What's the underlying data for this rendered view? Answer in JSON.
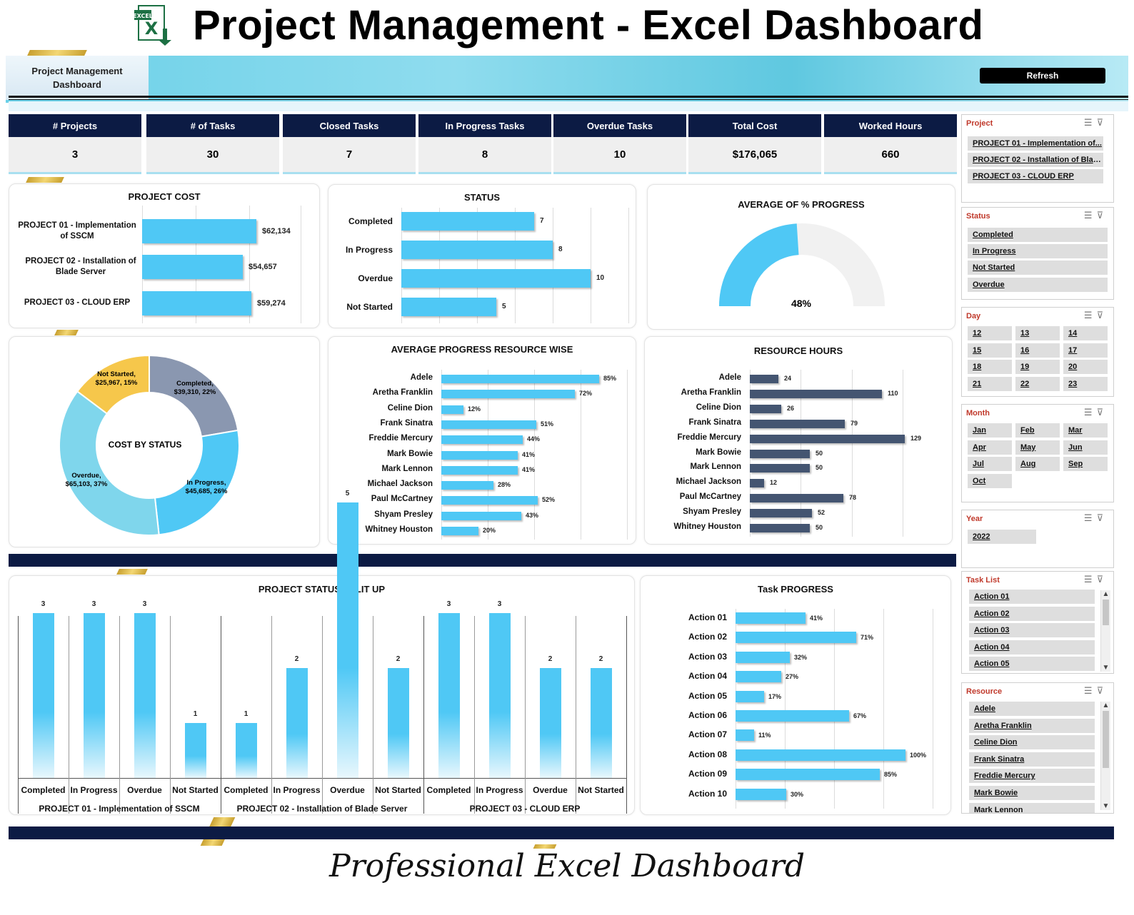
{
  "header": {
    "title": "Project Management - Excel Dashboard",
    "logo_text": "EXCEL"
  },
  "banner": {
    "label": "Project Management Dashboard",
    "refresh_label": "Refresh"
  },
  "kpis": [
    {
      "label": "# Projects",
      "value": "3"
    },
    {
      "label": "# of Tasks",
      "value": "30"
    },
    {
      "label": "Closed Tasks",
      "value": "7"
    },
    {
      "label": "In Progress Tasks",
      "value": "8"
    },
    {
      "label": "Overdue Tasks",
      "value": "10"
    },
    {
      "label": "Total Cost",
      "value": "$176,065"
    },
    {
      "label": "Worked Hours",
      "value": "660"
    }
  ],
  "project_cost": {
    "title": "PROJECT COST",
    "items": [
      {
        "label": "PROJECT 01 - Implementation of SSCM",
        "value_label": "$62,134",
        "value": 62134
      },
      {
        "label": "PROJECT 02 - Installation of Blade Server",
        "value_label": "$54,657",
        "value": 54657
      },
      {
        "label": "PROJECT 03 - CLOUD ERP",
        "value_label": "$59,274",
        "value": 59274
      }
    ]
  },
  "status": {
    "title": "STATUS",
    "items": [
      {
        "label": "Completed",
        "value": 7
      },
      {
        "label": "In Progress",
        "value": 8
      },
      {
        "label": "Overdue",
        "value": 10
      },
      {
        "label": "Not Started",
        "value": 5
      }
    ]
  },
  "avg_progress": {
    "title": "AVERAGE OF % PROGRESS",
    "value": 0.48,
    "value_label": "48%"
  },
  "cost_by_status": {
    "title": "COST BY STATUS",
    "slices": [
      {
        "name": "Completed",
        "amount": "$39,310",
        "pct": "22%",
        "value": 39310,
        "color": "#8a97b0"
      },
      {
        "name": "In Progress",
        "amount": "$45,685",
        "pct": "26%",
        "value": 45685,
        "color": "#4fc8f5"
      },
      {
        "name": "Overdue",
        "amount": "$65,103",
        "pct": "37%",
        "value": 65103,
        "color": "#7fd6ec"
      },
      {
        "name": "Not Started",
        "amount": "$25,967",
        "pct": "15%",
        "value": 25967,
        "color": "#f6c74b"
      }
    ]
  },
  "avg_progress_resource": {
    "title": "AVERAGE PROGRESS RESOURCE WISE",
    "items": [
      {
        "label": "Adele",
        "value": 85,
        "value_label": "85%"
      },
      {
        "label": "Aretha Franklin",
        "value": 72,
        "value_label": "72%"
      },
      {
        "label": "Celine Dion",
        "value": 12,
        "value_label": "12%"
      },
      {
        "label": "Frank Sinatra",
        "value": 51,
        "value_label": "51%"
      },
      {
        "label": "Freddie Mercury",
        "value": 44,
        "value_label": "44%"
      },
      {
        "label": "Mark Bowie",
        "value": 41,
        "value_label": "41%"
      },
      {
        "label": "Mark Lennon",
        "value": 41,
        "value_label": "41%"
      },
      {
        "label": "Michael Jackson",
        "value": 28,
        "value_label": "28%"
      },
      {
        "label": "Paul McCartney",
        "value": 52,
        "value_label": "52%"
      },
      {
        "label": "Shyam Presley",
        "value": 43,
        "value_label": "43%"
      },
      {
        "label": "Whitney Houston",
        "value": 20,
        "value_label": "20%"
      }
    ]
  },
  "resource_hours": {
    "title": "RESOURCE HOURS",
    "items": [
      {
        "label": "Adele",
        "value": 24
      },
      {
        "label": "Aretha Franklin",
        "value": 110
      },
      {
        "label": "Celine Dion",
        "value": 26
      },
      {
        "label": "Frank Sinatra",
        "value": 79
      },
      {
        "label": "Freddie Mercury",
        "value": 129
      },
      {
        "label": "Mark Bowie",
        "value": 50
      },
      {
        "label": "Mark Lennon",
        "value": 50
      },
      {
        "label": "Michael Jackson",
        "value": 12
      },
      {
        "label": "Paul McCartney",
        "value": 78
      },
      {
        "label": "Shyam Presley",
        "value": 52
      },
      {
        "label": "Whitney Houston",
        "value": 50
      }
    ]
  },
  "project_status_split": {
    "title": "PROJECT STATUS SPLIT UP",
    "groups": [
      {
        "name": "PROJECT 01 - Implementation of SSCM",
        "bars": [
          {
            "label": "Completed",
            "value": 3
          },
          {
            "label": "In Progress",
            "value": 3
          },
          {
            "label": "Overdue",
            "value": 3
          },
          {
            "label": "Not Started",
            "value": 1
          }
        ]
      },
      {
        "name": "PROJECT 02 - Installation of Blade Server",
        "bars": [
          {
            "label": "Completed",
            "value": 1
          },
          {
            "label": "In Progress",
            "value": 2
          },
          {
            "label": "Overdue",
            "value": 5
          },
          {
            "label": "Not Started",
            "value": 2
          }
        ]
      },
      {
        "name": "PROJECT 03 - CLOUD ERP",
        "bars": [
          {
            "label": "Completed",
            "value": 3
          },
          {
            "label": "In Progress",
            "value": 3
          },
          {
            "label": "Overdue",
            "value": 2
          },
          {
            "label": "Not Started",
            "value": 2
          }
        ]
      }
    ]
  },
  "task_progress": {
    "title": "Task PROGRESS",
    "items": [
      {
        "label": "Action 01",
        "value": 41,
        "value_label": "41%"
      },
      {
        "label": "Action 02",
        "value": 71,
        "value_label": "71%"
      },
      {
        "label": "Action 03",
        "value": 32,
        "value_label": "32%"
      },
      {
        "label": "Action 04",
        "value": 27,
        "value_label": "27%"
      },
      {
        "label": "Action 05",
        "value": 17,
        "value_label": "17%"
      },
      {
        "label": "Action 06",
        "value": 67,
        "value_label": "67%"
      },
      {
        "label": "Action 07",
        "value": 11,
        "value_label": "11%"
      },
      {
        "label": "Action 08",
        "value": 100,
        "value_label": "100%"
      },
      {
        "label": "Action 09",
        "value": 85,
        "value_label": "85%"
      },
      {
        "label": "Action 10",
        "value": 30,
        "value_label": "30%"
      }
    ]
  },
  "slicers": {
    "project": {
      "title": "Project",
      "items": [
        "PROJECT 01 - Implementation of...",
        "PROJECT 02 - Installation of Blad...",
        "PROJECT 03 - CLOUD ERP"
      ]
    },
    "status": {
      "title": "Status",
      "items": [
        "Completed",
        "In Progress",
        "Not Started",
        "Overdue"
      ]
    },
    "day": {
      "title": "Day",
      "items": [
        "12",
        "13",
        "14",
        "15",
        "16",
        "17",
        "18",
        "19",
        "20",
        "21",
        "22",
        "23"
      ]
    },
    "month": {
      "title": "Month",
      "items": [
        "Jan",
        "Feb",
        "Mar",
        "Apr",
        "May",
        "Jun",
        "Jul",
        "Aug",
        "Sep",
        "Oct"
      ]
    },
    "year": {
      "title": "Year",
      "items": [
        "2022"
      ]
    },
    "task_list": {
      "title": "Task List",
      "items": [
        "Action 01",
        "Action 02",
        "Action 03",
        "Action 04",
        "Action 05"
      ]
    },
    "resource": {
      "title": "Resource",
      "items": [
        "Adele",
        "Aretha Franklin",
        "Celine Dion",
        "Frank Sinatra",
        "Freddie Mercury",
        "Mark Bowie",
        "Mark Lennon"
      ]
    }
  },
  "footer": {
    "signature": "Professional Excel Dashboard"
  },
  "colors": {
    "navy": "#0c1b44",
    "bar_blue": "#4fc8f5",
    "bar_dark": "#445571",
    "slicer_title": "#c0392b"
  }
}
